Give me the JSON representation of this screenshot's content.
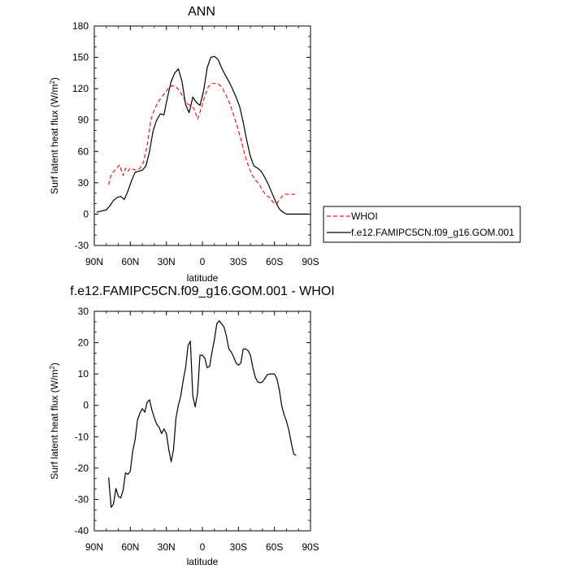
{
  "chart_data": [
    {
      "type": "line",
      "title": "ANN",
      "xlabel": "latitude",
      "ylabel_main": "Surf latent heat flux (W/m",
      "ylabel_sup": "2",
      "ylabel_tail": ")",
      "xlim": [
        90,
        -90
      ],
      "ylim": [
        -30,
        180
      ],
      "x_ticks": [
        90,
        60,
        30,
        0,
        -30,
        -60,
        -90
      ],
      "x_tick_labels": [
        "90N",
        "60N",
        "30N",
        "0",
        "30S",
        "60S",
        "90S"
      ],
      "y_ticks": [
        -30,
        0,
        30,
        60,
        90,
        120,
        150,
        180
      ],
      "y_tick_labels": [
        "-30",
        "0",
        "30",
        "60",
        "90",
        "120",
        "150",
        "180"
      ],
      "legend_position": "right",
      "series": [
        {
          "name": "WHOI",
          "color": "#e41a1c",
          "dash": "dashed",
          "x": [
            78,
            76,
            72,
            69,
            66,
            64,
            62,
            60,
            58,
            55,
            52,
            49,
            46,
            43,
            40,
            37,
            34,
            31,
            28,
            25,
            22,
            19,
            16,
            13,
            10,
            7,
            4,
            1,
            -2,
            -5,
            -8,
            -11,
            -14,
            -17,
            -20,
            -23,
            -26,
            -29,
            -32,
            -35,
            -38,
            -41,
            -44,
            -47,
            -50,
            -53,
            -56,
            -59,
            -62,
            -65,
            -68,
            -71,
            -74,
            -77
          ],
          "y": [
            28,
            38,
            43,
            47,
            37,
            44,
            41,
            44,
            43,
            42,
            44,
            50,
            65,
            90,
            100,
            107,
            112,
            116,
            121,
            123,
            122,
            118,
            112,
            106,
            104,
            101,
            91,
            101,
            113,
            122,
            125,
            125,
            124,
            120,
            113,
            105,
            95,
            84,
            72,
            58,
            47,
            38,
            33,
            29,
            23,
            18,
            16,
            11,
            10,
            15,
            19,
            19,
            19,
            19
          ]
        },
        {
          "name": "f.e12.FAMIPC5CN.f09_g16.GOM.001",
          "color": "#000000",
          "dash": "solid",
          "x": [
            88,
            84,
            80,
            77,
            74,
            71,
            68,
            65,
            62,
            59,
            56,
            53,
            50,
            47,
            44,
            41,
            38,
            35,
            32,
            29,
            26,
            23,
            20,
            17,
            14,
            11,
            8,
            5,
            2,
            -1,
            -4,
            -7,
            -10,
            -13,
            -16,
            -19,
            -22,
            -25,
            -28,
            -31,
            -34,
            -37,
            -40,
            -43,
            -46,
            -49,
            -52,
            -55,
            -58,
            -61,
            -64,
            -67,
            -70,
            -73,
            -76,
            -79,
            -82,
            -85,
            -88
          ],
          "y": [
            2,
            3,
            4,
            8,
            13,
            16,
            17,
            14,
            22,
            32,
            40,
            41,
            42,
            46,
            60,
            80,
            90,
            96,
            95,
            112,
            127,
            135,
            139,
            127,
            105,
            97,
            112,
            107,
            104,
            118,
            140,
            150,
            151,
            148,
            140,
            133,
            127,
            120,
            112,
            103,
            88,
            70,
            55,
            46,
            44,
            41,
            35,
            28,
            20,
            12,
            5,
            2,
            0,
            0,
            0,
            0,
            0,
            0,
            0
          ]
        }
      ]
    },
    {
      "type": "line",
      "title": "f.e12.FAMIPC5CN.f09_g16.GOM.001 - WHOI",
      "xlabel": "latitude",
      "ylabel_main": "Surf latent heat flux (W/m",
      "ylabel_sup": "2",
      "ylabel_tail": ")",
      "xlim": [
        90,
        -90
      ],
      "ylim": [
        -40,
        30
      ],
      "x_ticks": [
        90,
        60,
        30,
        0,
        -30,
        -60,
        -90
      ],
      "x_tick_labels": [
        "90N",
        "60N",
        "30N",
        "0",
        "30S",
        "60S",
        "90S"
      ],
      "y_ticks": [
        -40,
        -30,
        -20,
        -10,
        0,
        10,
        20,
        30
      ],
      "y_tick_labels": [
        "-40",
        "-30",
        "-20",
        "-10",
        "0",
        "10",
        "20",
        "30"
      ],
      "series": [
        {
          "color": "#000000",
          "dash": "solid",
          "x": [
            78,
            76,
            74,
            72,
            70,
            68,
            66,
            64,
            62,
            60,
            58,
            56,
            54,
            52,
            50,
            48,
            46,
            44,
            42,
            40,
            38,
            36,
            34,
            32,
            30,
            28,
            26,
            24,
            22,
            20,
            18,
            16,
            14,
            12,
            10,
            8,
            6,
            4,
            2,
            0,
            -2,
            -4,
            -6,
            -8,
            -10,
            -12,
            -14,
            -16,
            -18,
            -20,
            -22,
            -24,
            -26,
            -28,
            -30,
            -32,
            -34,
            -36,
            -38,
            -40,
            -42,
            -44,
            -46,
            -48,
            -50,
            -52,
            -54,
            -56,
            -58,
            -60,
            -62,
            -64,
            -66,
            -68,
            -70,
            -72,
            -74,
            -76,
            -78
          ],
          "y": [
            -23,
            -32.5,
            -31.5,
            -26.5,
            -29,
            -29.5,
            -27,
            -21.5,
            -22,
            -21,
            -14.5,
            -11,
            -4.5,
            -2.5,
            -1,
            -2.2,
            1,
            1.8,
            -1.5,
            -4,
            -6,
            -7,
            -9,
            -7.5,
            -9,
            -14,
            -18,
            -14,
            -4,
            0,
            3,
            8,
            12,
            19,
            20.5,
            3,
            -0.5,
            4,
            16,
            16,
            15,
            12,
            12.5,
            17,
            21,
            26,
            27,
            26,
            25,
            22,
            18,
            17,
            15.5,
            13.5,
            12.8,
            13.5,
            18,
            18,
            17.5,
            16,
            12,
            9,
            7.5,
            7.2,
            7.5,
            8.5,
            9.8,
            10,
            10,
            10,
            8.5,
            5,
            0,
            -3,
            -5,
            -8,
            -12,
            -15.5,
            -16
          ]
        }
      ]
    }
  ]
}
